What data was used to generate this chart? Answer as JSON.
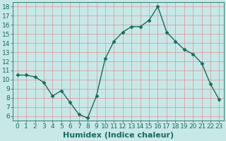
{
  "x": [
    0,
    1,
    2,
    3,
    4,
    5,
    6,
    7,
    8,
    9,
    10,
    11,
    12,
    13,
    14,
    15,
    16,
    17,
    18,
    19,
    20,
    21,
    22,
    23
  ],
  "y": [
    10.5,
    10.5,
    10.3,
    9.7,
    8.2,
    8.8,
    7.5,
    6.2,
    5.8,
    8.2,
    12.3,
    14.2,
    15.2,
    15.8,
    15.8,
    16.5,
    18.0,
    15.2,
    14.2,
    13.3,
    12.8,
    11.8,
    9.5,
    7.8
  ],
  "line_color": "#1a6b5a",
  "marker": "D",
  "marker_size": 2.5,
  "xlabel": "Humidex (Indice chaleur)",
  "xlim": [
    -0.5,
    23.5
  ],
  "ylim": [
    5.5,
    18.5
  ],
  "yticks": [
    6,
    7,
    8,
    9,
    10,
    11,
    12,
    13,
    14,
    15,
    16,
    17,
    18
  ],
  "xticks": [
    0,
    1,
    2,
    3,
    4,
    5,
    6,
    7,
    8,
    9,
    10,
    11,
    12,
    13,
    14,
    15,
    16,
    17,
    18,
    19,
    20,
    21,
    22,
    23
  ],
  "background_color": "#c8e8e8",
  "grid_color": "#d8a0a0",
  "axis_label_color": "#1a6b5a",
  "tick_label_color": "#1a6b5a",
  "tick_label_fontsize": 6.5,
  "xlabel_fontsize": 8,
  "linewidth": 1.0
}
